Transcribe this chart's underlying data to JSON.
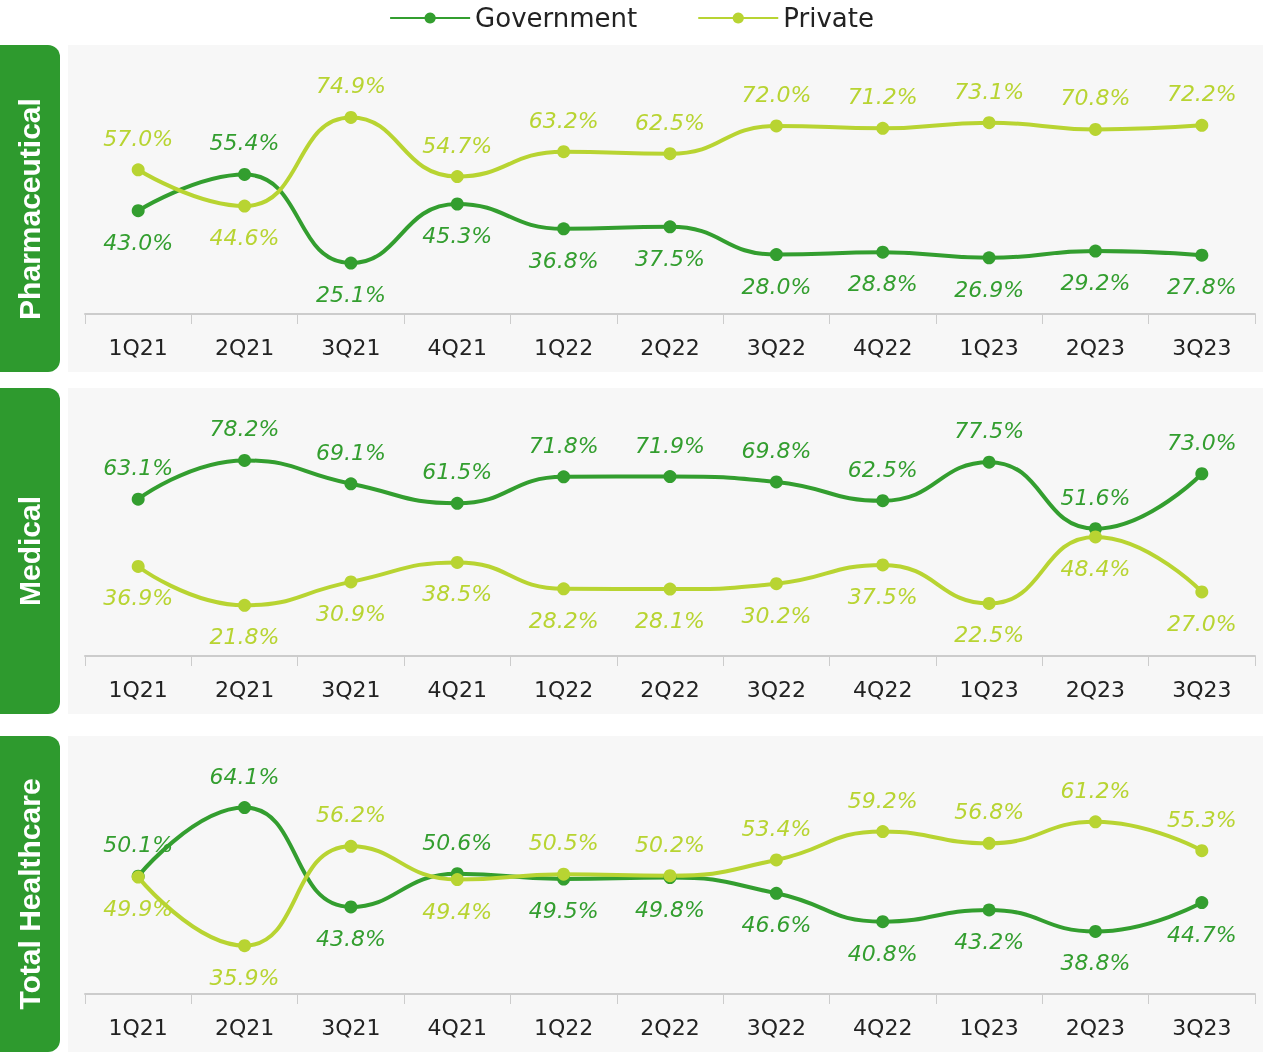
{
  "chart_data": [
    {
      "type": "line",
      "title": "Pharmaceutical",
      "categories": [
        "1Q21",
        "2Q21",
        "3Q21",
        "4Q21",
        "1Q22",
        "2Q22",
        "3Q22",
        "4Q22",
        "1Q23",
        "2Q23",
        "3Q23"
      ],
      "legend": "top",
      "marker": "circle",
      "line_style": "solid",
      "grid": false,
      "tick_labels": "x",
      "series": [
        {
          "name": "Government",
          "color": "#339e2f",
          "values": [
            43.0,
            55.4,
            25.1,
            45.3,
            36.8,
            37.5,
            28.0,
            28.8,
            26.9,
            29.2,
            27.8
          ],
          "value_labels": [
            "43.0%",
            "55.4%",
            "25.1%",
            "45.3%",
            "36.8%",
            "37.5%",
            "28.0%",
            "28.8%",
            "26.9%",
            "29.2%",
            "27.8%"
          ]
        },
        {
          "name": "Private",
          "color": "#b8d432",
          "values": [
            57.0,
            44.6,
            74.9,
            54.7,
            63.2,
            62.5,
            72.0,
            71.2,
            73.1,
            70.8,
            72.2
          ],
          "value_labels": [
            "57.0%",
            "44.6%",
            "74.9%",
            "54.7%",
            "63.2%",
            "62.5%",
            "72.0%",
            "71.2%",
            "73.1%",
            "70.8%",
            "72.2%"
          ]
        }
      ]
    },
    {
      "type": "line",
      "title": "Medical",
      "categories": [
        "1Q21",
        "2Q21",
        "3Q21",
        "4Q21",
        "1Q22",
        "2Q22",
        "3Q22",
        "4Q22",
        "1Q23",
        "2Q23",
        "3Q23"
      ],
      "legend": false,
      "marker": "circle",
      "line_style": "solid",
      "grid": false,
      "tick_labels": "x",
      "series": [
        {
          "color": "#339e2f",
          "values": [
            63.1,
            78.2,
            69.1,
            61.5,
            71.8,
            71.9,
            69.8,
            62.5,
            77.5,
            51.6,
            73.0
          ],
          "value_labels": [
            "63.1%",
            "78.2%",
            "69.1%",
            "61.5%",
            "71.8%",
            "71.9%",
            "69.8%",
            "62.5%",
            "77.5%",
            "51.6%",
            "73.0%"
          ]
        },
        {
          "color": "#b8d432",
          "values": [
            36.9,
            21.8,
            30.9,
            38.5,
            28.2,
            28.1,
            30.2,
            37.5,
            22.5,
            48.4,
            27.0
          ],
          "value_labels": [
            "36.9%",
            "21.8%",
            "30.9%",
            "38.5%",
            "28.2%",
            "28.1%",
            "30.2%",
            "37.5%",
            "22.5%",
            "48.4%",
            "27.0%"
          ]
        }
      ]
    },
    {
      "type": "line",
      "title": "Total Healthcare",
      "categories": [
        "1Q21",
        "2Q21",
        "3Q21",
        "4Q21",
        "1Q22",
        "2Q22",
        "3Q22",
        "4Q22",
        "1Q23",
        "2Q23",
        "3Q23"
      ],
      "legend": false,
      "marker": "circle",
      "line_style": "solid",
      "grid": false,
      "tick_labels": "x",
      "series": [
        {
          "color": "#339e2f",
          "values": [
            50.1,
            64.1,
            43.8,
            50.6,
            49.5,
            49.8,
            46.6,
            40.8,
            43.2,
            38.8,
            44.7
          ],
          "value_labels": [
            "50.1%",
            "64.1%",
            "43.8%",
            "50.6%",
            "49.5%",
            "49.8%",
            "46.6%",
            "40.8%",
            "43.2%",
            "38.8%",
            "44.7%"
          ]
        },
        {
          "color": "#b8d432",
          "values": [
            49.9,
            35.9,
            56.2,
            49.4,
            50.5,
            50.2,
            53.4,
            59.2,
            56.8,
            61.2,
            55.3
          ],
          "value_labels": [
            "49.9%",
            "35.9%",
            "56.2%",
            "49.4%",
            "50.5%",
            "50.2%",
            "53.4%",
            "59.2%",
            "56.8%",
            "61.2%",
            "55.3%"
          ]
        }
      ]
    }
  ]
}
